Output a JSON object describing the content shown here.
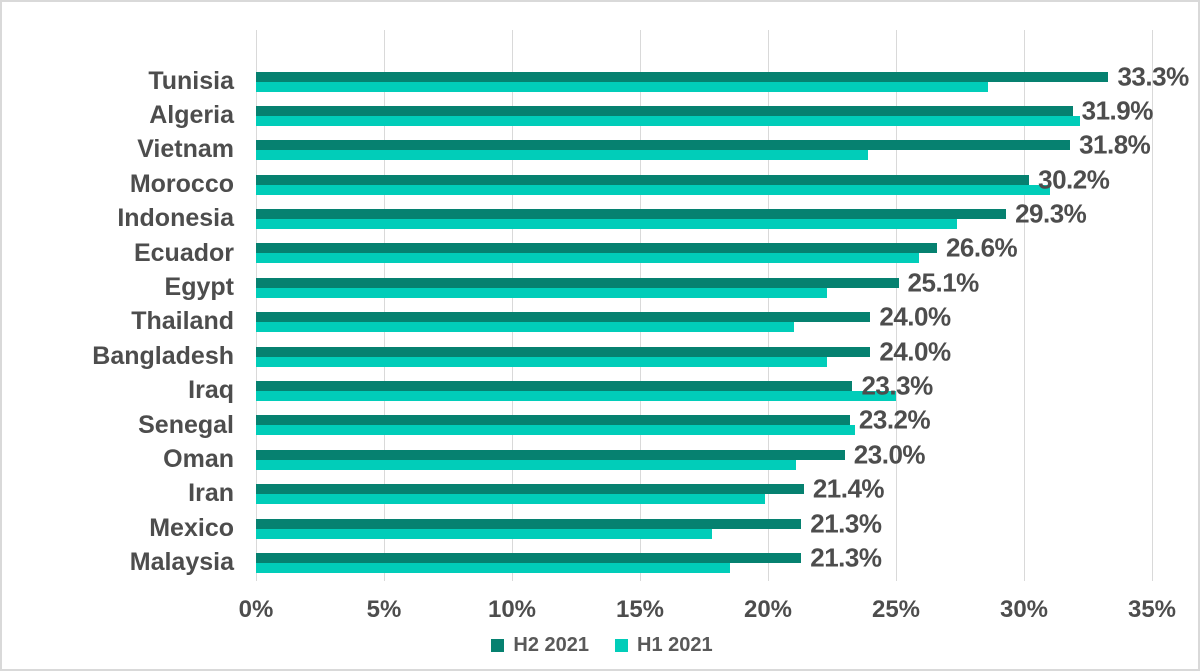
{
  "chart_data": {
    "type": "bar",
    "orientation": "horizontal",
    "title": "",
    "categories": [
      "Tunisia",
      "Algeria",
      "Vietnam",
      "Morocco",
      "Indonesia",
      "Ecuador",
      "Egypt",
      "Thailand",
      "Bangladesh",
      "Iraq",
      "Senegal",
      "Oman",
      "Iran",
      "Mexico",
      "Malaysia"
    ],
    "series": [
      {
        "name": "H2 2021",
        "color": "#068170",
        "values": [
          33.3,
          31.9,
          31.8,
          30.2,
          29.3,
          26.6,
          25.1,
          24.0,
          24.0,
          23.3,
          23.2,
          23.0,
          21.4,
          21.3,
          21.3
        ],
        "data_labels": [
          "33.3%",
          "31.9%",
          "31.8%",
          "30.2%",
          "29.3%",
          "26.6%",
          "25.1%",
          "24.0%",
          "24.0%",
          "23.3%",
          "23.2%",
          "23.0%",
          "21.4%",
          "21.3%",
          "21.3%"
        ]
      },
      {
        "name": "H1 2021",
        "color": "#01cdb9",
        "values": [
          28.6,
          32.2,
          23.9,
          31.0,
          27.4,
          25.9,
          22.3,
          21.0,
          22.3,
          25.0,
          23.4,
          21.1,
          19.9,
          17.8,
          18.5
        ],
        "data_labels": []
      }
    ],
    "x_axis": {
      "min": 0,
      "max": 35,
      "tick_step": 5,
      "ticks": [
        "0%",
        "5%",
        "10%",
        "15%",
        "20%",
        "25%",
        "30%",
        "35%"
      ]
    },
    "grid": "vertical-lines",
    "gridline_color": "#d9d9d9",
    "legend_position": "bottom-center",
    "legend": [
      {
        "label": "H2 2021",
        "color": "#068170"
      },
      {
        "label": "H1 2021",
        "color": "#01cdb9"
      }
    ],
    "text_color": "#4d4d4d"
  }
}
